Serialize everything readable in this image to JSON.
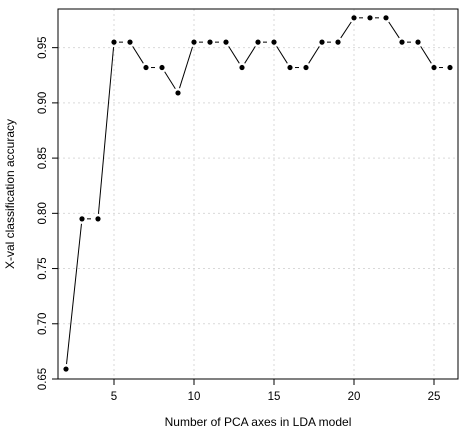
{
  "chart_data": {
    "type": "line",
    "title": "",
    "xlabel": "Number of PCA axes in LDA model",
    "ylabel": "X-val classification accuracy",
    "xlim": [
      1.5,
      26.5
    ],
    "ylim": [
      0.65,
      0.985
    ],
    "xticks": [
      5,
      10,
      15,
      20,
      25
    ],
    "yticks": [
      0.65,
      0.7,
      0.75,
      0.8,
      0.85,
      0.9,
      0.95
    ],
    "ytick_labels": [
      "0.65",
      "0.70",
      "0.75",
      "0.80",
      "0.85",
      "0.90",
      "0.95"
    ],
    "grid": true,
    "series": [
      {
        "x": [
          2,
          3,
          4,
          5,
          6,
          7,
          8,
          9,
          10,
          11,
          12,
          13,
          14,
          15,
          16,
          17,
          18,
          19,
          20,
          21,
          22,
          23,
          24,
          25,
          26
        ],
        "values": [
          0.659,
          0.795,
          0.795,
          0.955,
          0.955,
          0.932,
          0.932,
          0.909,
          0.955,
          0.955,
          0.955,
          0.932,
          0.955,
          0.955,
          0.932,
          0.932,
          0.955,
          0.955,
          0.977,
          0.977,
          0.977,
          0.955,
          0.955,
          0.932,
          0.932
        ]
      }
    ]
  }
}
